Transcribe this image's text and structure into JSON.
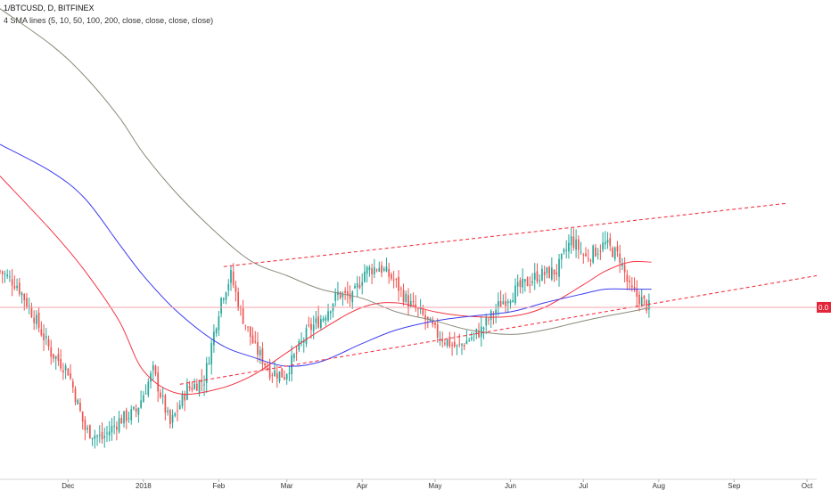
{
  "header": {
    "symbol": "1/BTCUSD, D, BITFINEX",
    "indicator": "4 SMA lines (5, 10, 50, 100, 200, close, close, close, close)"
  },
  "price_scale": {
    "last_value": "0.0",
    "tag_color": "#e3263a"
  },
  "colors": {
    "up": "#26a69a",
    "down": "#ef5350",
    "sma_50": "#f23645",
    "sma_100": "#3c3cf0",
    "sma_200": "#8a8a7a",
    "trend": "#f23645",
    "axis": "#d6d6d6"
  },
  "chart_data": {
    "type": "candlestick",
    "title": "1/BTCUSD, D, BITFINEX",
    "x_ticks": [
      "Dec",
      "2018",
      "Feb",
      "Mar",
      "Apr",
      "May",
      "Jun",
      "Jul",
      "Aug",
      "Sep",
      "Oct"
    ],
    "x_tick_dates": [
      "2017-12-01",
      "2018-01-01",
      "2018-02-01",
      "2018-03-01",
      "2018-04-01",
      "2018-05-01",
      "2018-06-01",
      "2018-07-01",
      "2018-08-01",
      "2018-09-01",
      "2018-10-01"
    ],
    "x_range": [
      "2017-11-03",
      "2018-10-05"
    ],
    "y_range": [
      0,
      100
    ],
    "y_unit": "relative price position (0 = axis bottom, 100 = chart top)",
    "current_value_label": "0.0",
    "grid": false,
    "close_series": {
      "dates": [
        "2017-11-03",
        "2017-11-10",
        "2017-11-17",
        "2017-11-24",
        "2017-12-01",
        "2017-12-08",
        "2017-12-15",
        "2017-12-22",
        "2017-12-29",
        "2018-01-05",
        "2018-01-12",
        "2018-01-19",
        "2018-01-26",
        "2018-02-02",
        "2018-02-06",
        "2018-02-10",
        "2018-02-16",
        "2018-02-22",
        "2018-02-28",
        "2018-03-05",
        "2018-03-10",
        "2018-03-16",
        "2018-03-22",
        "2018-03-28",
        "2018-04-02",
        "2018-04-08",
        "2018-04-14",
        "2018-04-20",
        "2018-04-26",
        "2018-05-02",
        "2018-05-10",
        "2018-05-20",
        "2018-05-28",
        "2018-06-04",
        "2018-06-12",
        "2018-06-20",
        "2018-06-26",
        "2018-07-02",
        "2018-07-10",
        "2018-07-16",
        "2018-07-20",
        "2018-07-24",
        "2018-07-28"
      ],
      "values": [
        46,
        43,
        36,
        28,
        24,
        11,
        9,
        13,
        15,
        24,
        12,
        20,
        22,
        40,
        45,
        37,
        29,
        24,
        23,
        28,
        33,
        36,
        41,
        40,
        46,
        47,
        44,
        39,
        36,
        32,
        29,
        33,
        39,
        42,
        45,
        46,
        53,
        49,
        52,
        49,
        42,
        40,
        38
      ]
    },
    "series": [
      {
        "name": "SMA 50",
        "color": "#f23645",
        "dates": [
          "2017-11-03",
          "2017-11-24",
          "2017-12-08",
          "2017-12-22",
          "2018-01-01",
          "2018-01-15",
          "2018-02-01",
          "2018-02-15",
          "2018-03-01",
          "2018-03-15",
          "2018-04-01",
          "2018-04-15",
          "2018-05-01",
          "2018-05-15",
          "2018-06-01",
          "2018-06-15",
          "2018-07-01",
          "2018-07-10",
          "2018-07-20",
          "2018-07-29"
        ],
        "values": [
          67,
          55,
          46,
          35,
          24,
          19,
          20,
          23,
          28,
          33,
          38,
          39,
          37,
          36,
          36,
          38,
          43,
          46,
          48,
          48
        ]
      },
      {
        "name": "SMA 100",
        "color": "#3c3cf0",
        "dates": [
          "2017-11-03",
          "2017-11-24",
          "2017-12-08",
          "2017-12-22",
          "2018-01-01",
          "2018-01-15",
          "2018-02-01",
          "2018-02-15",
          "2018-03-01",
          "2018-03-15",
          "2018-04-01",
          "2018-04-15",
          "2018-05-01",
          "2018-05-15",
          "2018-06-01",
          "2018-06-15",
          "2018-07-01",
          "2018-07-10",
          "2018-07-20",
          "2018-07-29"
        ],
        "values": [
          74,
          68,
          62,
          52,
          45,
          37,
          30,
          27,
          25,
          26,
          30,
          33,
          35,
          36,
          37,
          39,
          41,
          42,
          42,
          42
        ]
      },
      {
        "name": "SMA 200",
        "color": "#8a8a7a",
        "dates": [
          "2017-11-03",
          "2017-11-24",
          "2017-12-08",
          "2017-12-22",
          "2018-01-01",
          "2018-01-15",
          "2018-02-01",
          "2018-02-15",
          "2018-03-01",
          "2018-03-15",
          "2018-04-01",
          "2018-04-15",
          "2018-05-01",
          "2018-05-15",
          "2018-06-01",
          "2018-06-15",
          "2018-07-01",
          "2018-07-10",
          "2018-07-20",
          "2018-07-29"
        ],
        "values": [
          104,
          96,
          89,
          80,
          72,
          63,
          54,
          48,
          45,
          42,
          40,
          37,
          35,
          33,
          32,
          33,
          35,
          36,
          37,
          38
        ]
      }
    ],
    "trend_lines": [
      {
        "name": "upper channel",
        "from": {
          "date": "2018-02-03",
          "value": 47
        },
        "to": {
          "date": "2018-09-23",
          "value": 61
        }
      },
      {
        "name": "lower channel",
        "from": {
          "date": "2018-01-16",
          "value": 21
        },
        "to": {
          "date": "2018-10-05",
          "value": 45
        }
      }
    ]
  }
}
